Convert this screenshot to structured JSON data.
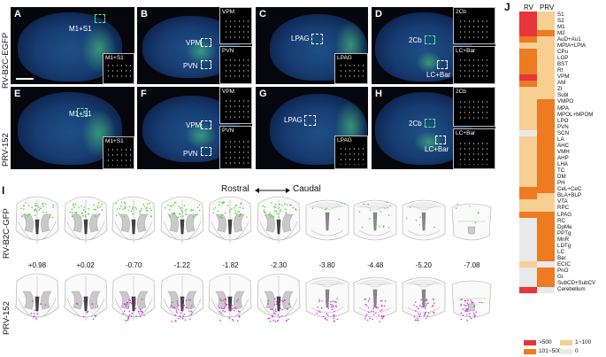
{
  "figure": {
    "row_labels": [
      "RV-B2C-EGFP",
      "PRV-152"
    ],
    "panel_I_label": "I",
    "rostral_label": "Rostral",
    "caudal_label": "Caudal",
    "atlas_row_labels": [
      "RV-B2C-GFP",
      "PRV-152"
    ],
    "coordinates": [
      "+0.98",
      "+0.02",
      "-0.70",
      "-1.22",
      "-1.82",
      "-2.30",
      "-3.80",
      "-4.48",
      "-5.20",
      "-7.08"
    ]
  },
  "panels": [
    {
      "letter": "A",
      "regions": [
        "M1+S1"
      ],
      "insets": [
        "M1+S1"
      ]
    },
    {
      "letter": "B",
      "regions": [
        "VPM",
        "PVN"
      ],
      "insets": [
        "VPM",
        "PVN"
      ]
    },
    {
      "letter": "C",
      "regions": [
        "LPAG"
      ],
      "insets": [
        "LPAG"
      ]
    },
    {
      "letter": "D",
      "regions": [
        "2Cb",
        "LC+Bar"
      ],
      "insets": [
        "2Cb",
        "LC+Bar"
      ]
    },
    {
      "letter": "E",
      "regions": [
        "M1+S1"
      ],
      "insets": [
        "M1+S1"
      ]
    },
    {
      "letter": "F",
      "regions": [
        "VPM",
        "PVN"
      ],
      "insets": [
        "VPM",
        "PVN"
      ]
    },
    {
      "letter": "G",
      "regions": [
        "LPAG"
      ],
      "insets": [
        "LPAG"
      ]
    },
    {
      "letter": "H",
      "regions": [
        "2Cb",
        "LC+Bar"
      ],
      "insets": [
        "2Cb",
        "LC+Bar"
      ]
    }
  ],
  "heatmap": {
    "panel_letter": "J",
    "columns": [
      "RV",
      "PRV"
    ],
    "colors": {
      "gt500": "#e8343a",
      "r101_500": "#ee7a22",
      "r1_100": "#f7cf92",
      "zero": "#e9e9e9"
    },
    "legend": [
      {
        "key": "gt500",
        "label": ">500"
      },
      {
        "key": "r1_100",
        "label": "1~100"
      },
      {
        "key": "r101_500",
        "label": "101~500"
      },
      {
        "key": "zero",
        "label": "0"
      }
    ],
    "rows": [
      {
        "label": "S1",
        "rv": "gt500",
        "prv": "r1_100"
      },
      {
        "label": "S2",
        "rv": "gt500",
        "prv": "r1_100"
      },
      {
        "label": "M1",
        "rv": "gt500",
        "prv": "r1_100"
      },
      {
        "label": "M2",
        "rv": "gt500",
        "prv": "r101_500"
      },
      {
        "label": "AuD+Au1",
        "rv": "r101_500",
        "prv": "r1_100"
      },
      {
        "label": "MPtA+LPtA",
        "rv": "r1_100",
        "prv": "r1_100"
      },
      {
        "label": "CPu",
        "rv": "r101_500",
        "prv": "r1_100"
      },
      {
        "label": "LGP",
        "rv": "r101_500",
        "prv": "r1_100"
      },
      {
        "label": "BST",
        "rv": "r101_500",
        "prv": "r1_100"
      },
      {
        "label": "Rt",
        "rv": "r101_500",
        "prv": "r1_100"
      },
      {
        "label": "VPM",
        "rv": "gt500",
        "prv": "r1_100"
      },
      {
        "label": "AM",
        "rv": "r101_500",
        "prv": "r1_100"
      },
      {
        "label": "ZI",
        "rv": "r1_100",
        "prv": "r1_100"
      },
      {
        "label": "Subl",
        "rv": "r1_100",
        "prv": "r1_100"
      },
      {
        "label": "VMPO",
        "rv": "r1_100",
        "prv": "r101_500"
      },
      {
        "label": "MPA",
        "rv": "r1_100",
        "prv": "r101_500"
      },
      {
        "label": "MPOL+MPOM",
        "rv": "r1_100",
        "prv": "r101_500"
      },
      {
        "label": "LPO",
        "rv": "r1_100",
        "prv": "r101_500"
      },
      {
        "label": "PVN",
        "rv": "r1_100",
        "prv": "r101_500"
      },
      {
        "label": "SCN",
        "rv": "zero",
        "prv": "r101_500"
      },
      {
        "label": "LA",
        "rv": "r1_100",
        "prv": "r101_500"
      },
      {
        "label": "AHC",
        "rv": "r1_100",
        "prv": "r101_500"
      },
      {
        "label": "VMH",
        "rv": "r1_100",
        "prv": "r101_500"
      },
      {
        "label": "AHP",
        "rv": "r1_100",
        "prv": "r101_500"
      },
      {
        "label": "LHA",
        "rv": "r1_100",
        "prv": "r101_500"
      },
      {
        "label": "TC",
        "rv": "r1_100",
        "prv": "r101_500"
      },
      {
        "label": "DM",
        "rv": "r1_100",
        "prv": "r101_500"
      },
      {
        "label": "PH",
        "rv": "r1_100",
        "prv": "r101_500"
      },
      {
        "label": "CeL+CeC",
        "rv": "r101_500",
        "prv": "r101_500"
      },
      {
        "label": "BLA+BLP",
        "rv": "r101_500",
        "prv": "r1_100"
      },
      {
        "label": "VTA",
        "rv": "r1_100",
        "prv": "r1_100"
      },
      {
        "label": "RPC",
        "rv": "r1_100",
        "prv": "r1_100"
      },
      {
        "label": "LPAG",
        "rv": "r101_500",
        "prv": "r101_500"
      },
      {
        "label": "RC",
        "rv": "zero",
        "prv": "r101_500"
      },
      {
        "label": "DpMe",
        "rv": "zero",
        "prv": "r101_500"
      },
      {
        "label": "PPTg",
        "rv": "zero",
        "prv": "r101_500"
      },
      {
        "label": "MnR",
        "rv": "zero",
        "prv": "r101_500"
      },
      {
        "label": "LDTg",
        "rv": "zero",
        "prv": "r101_500"
      },
      {
        "label": "LC",
        "rv": "zero",
        "prv": "r101_500"
      },
      {
        "label": "Bar",
        "rv": "zero",
        "prv": "r101_500"
      },
      {
        "label": "ECIC",
        "rv": "r1_100",
        "prv": "zero"
      },
      {
        "label": "PnO",
        "rv": "zero",
        "prv": "r101_500"
      },
      {
        "label": "Gi",
        "rv": "zero",
        "prv": "r101_500"
      },
      {
        "label": "SubCD+SubCV",
        "rv": "zero",
        "prv": "r101_500"
      },
      {
        "label": "Cerebellum",
        "rv": "gt500",
        "prv": "zero"
      }
    ]
  }
}
